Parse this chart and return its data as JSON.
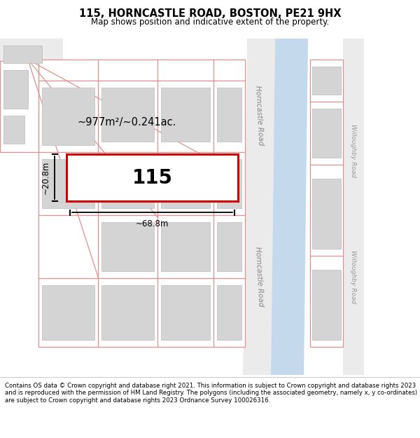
{
  "title": "115, HORNCASTLE ROAD, BOSTON, PE21 9HX",
  "subtitle": "Map shows position and indicative extent of the property.",
  "footer": "Contains OS data © Crown copyright and database right 2021. This information is subject to Crown copyright and database rights 2023 and is reproduced with the permission of HM Land Registry. The polygons (including the associated geometry, namely x, y co-ordinates) are subject to Crown copyright and database rights 2023 Ordnance Survey 100026316.",
  "map_bg": "#ffffff",
  "building_fill": "#d4d4d4",
  "building_outline": "#bbbbbb",
  "plot_outline_color": "#e09090",
  "target_fill": "#ffffff",
  "target_outline": "#cc0000",
  "water_color": "#c5d9ed",
  "area_text": "~977m²/~0.241ac.",
  "house_number": "115",
  "width_label": "~68.8m",
  "height_label": "~20.8m",
  "road_label_horncastle": "Horncastle Road",
  "road_label_willoughby": "Willoughby Road",
  "road_fill": "#ebebeb",
  "footer_border": "#cccccc"
}
